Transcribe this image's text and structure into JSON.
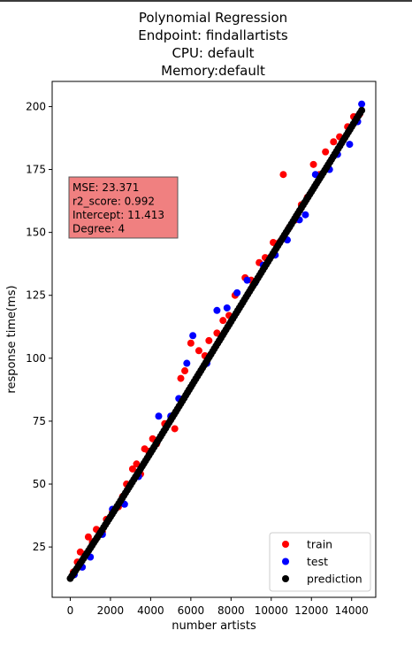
{
  "chart_data": {
    "type": "scatter",
    "title_lines": [
      "Polynomial Regression",
      "Endpoint: findallartists",
      "CPU: default",
      "Memory:default"
    ],
    "xlabel": "number artists",
    "ylabel": "response time(ms)",
    "xlim": [
      -900,
      15200
    ],
    "ylim": [
      5,
      210
    ],
    "xticks": [
      0,
      2000,
      4000,
      6000,
      8000,
      10000,
      12000,
      14000
    ],
    "yticks": [
      25,
      50,
      75,
      100,
      125,
      150,
      175,
      200
    ],
    "annotation_lines": [
      "MSE: 23.371",
      "r2_score: 0.992",
      "Intercept: 11.413",
      "Degree: 4"
    ],
    "legend_position": "lower-right",
    "colors": {
      "train": "#ff0000",
      "test": "#0000ff",
      "prediction": "#000000",
      "annotation_box": "#f08080"
    },
    "series": [
      {
        "name": "train",
        "x": [
          150,
          350,
          500,
          700,
          900,
          1100,
          1300,
          1600,
          1800,
          2100,
          2400,
          2600,
          2800,
          3100,
          3300,
          3500,
          3700,
          3900,
          4100,
          4300,
          4700,
          5200,
          5500,
          5700,
          6000,
          6400,
          6700,
          6900,
          7300,
          7600,
          7900,
          8200,
          8700,
          9000,
          9400,
          9700,
          10100,
          10400,
          10600,
          10900,
          11200,
          11500,
          11800,
          12100,
          12400,
          12700,
          13100,
          13400,
          13800,
          14100,
          14400
        ],
        "y": [
          15,
          19,
          23,
          22,
          29,
          27,
          32,
          31,
          36,
          39,
          41,
          45,
          50,
          56,
          58,
          54,
          64,
          63,
          68,
          66,
          74,
          72,
          92,
          95,
          106,
          103,
          101,
          107,
          110,
          115,
          117,
          125,
          132,
          131,
          138,
          140,
          146,
          146,
          173,
          152,
          155,
          161,
          164,
          177,
          173,
          182,
          186,
          188,
          192,
          196,
          197
        ]
      },
      {
        "name": "test",
        "x": [
          200,
          600,
          1000,
          1600,
          2100,
          2700,
          3400,
          4400,
          5000,
          5400,
          5800,
          6100,
          6800,
          7300,
          7800,
          8300,
          8800,
          9200,
          9600,
          10200,
          10800,
          11400,
          11700,
          12200,
          12900,
          13300,
          13900,
          14300,
          14500
        ],
        "y": [
          14,
          17,
          21,
          30,
          40,
          42,
          53,
          77,
          77,
          84,
          98,
          109,
          98,
          119,
          120,
          126,
          131,
          130,
          137,
          141,
          147,
          155,
          157,
          173,
          175,
          181,
          185,
          194,
          201
        ]
      },
      {
        "name": "prediction",
        "x": [
          0,
          500,
          1000,
          1500,
          2000,
          2500,
          3000,
          3500,
          4000,
          4500,
          5000,
          5500,
          6000,
          6500,
          7000,
          7500,
          8000,
          8500,
          9000,
          9500,
          10000,
          10500,
          11000,
          11500,
          12000,
          12500,
          13000,
          13500,
          14000,
          14500
        ],
        "y": [
          12.5,
          18.5,
          24.6,
          30.7,
          37,
          43.3,
          49.7,
          56.1,
          62.5,
          69,
          75.5,
          82,
          88.6,
          95.1,
          101.6,
          108.1,
          114.6,
          121.1,
          127.6,
          134,
          140.5,
          146.9,
          153.3,
          159.8,
          166.2,
          172.6,
          179,
          185.5,
          192,
          198.5
        ]
      }
    ]
  }
}
